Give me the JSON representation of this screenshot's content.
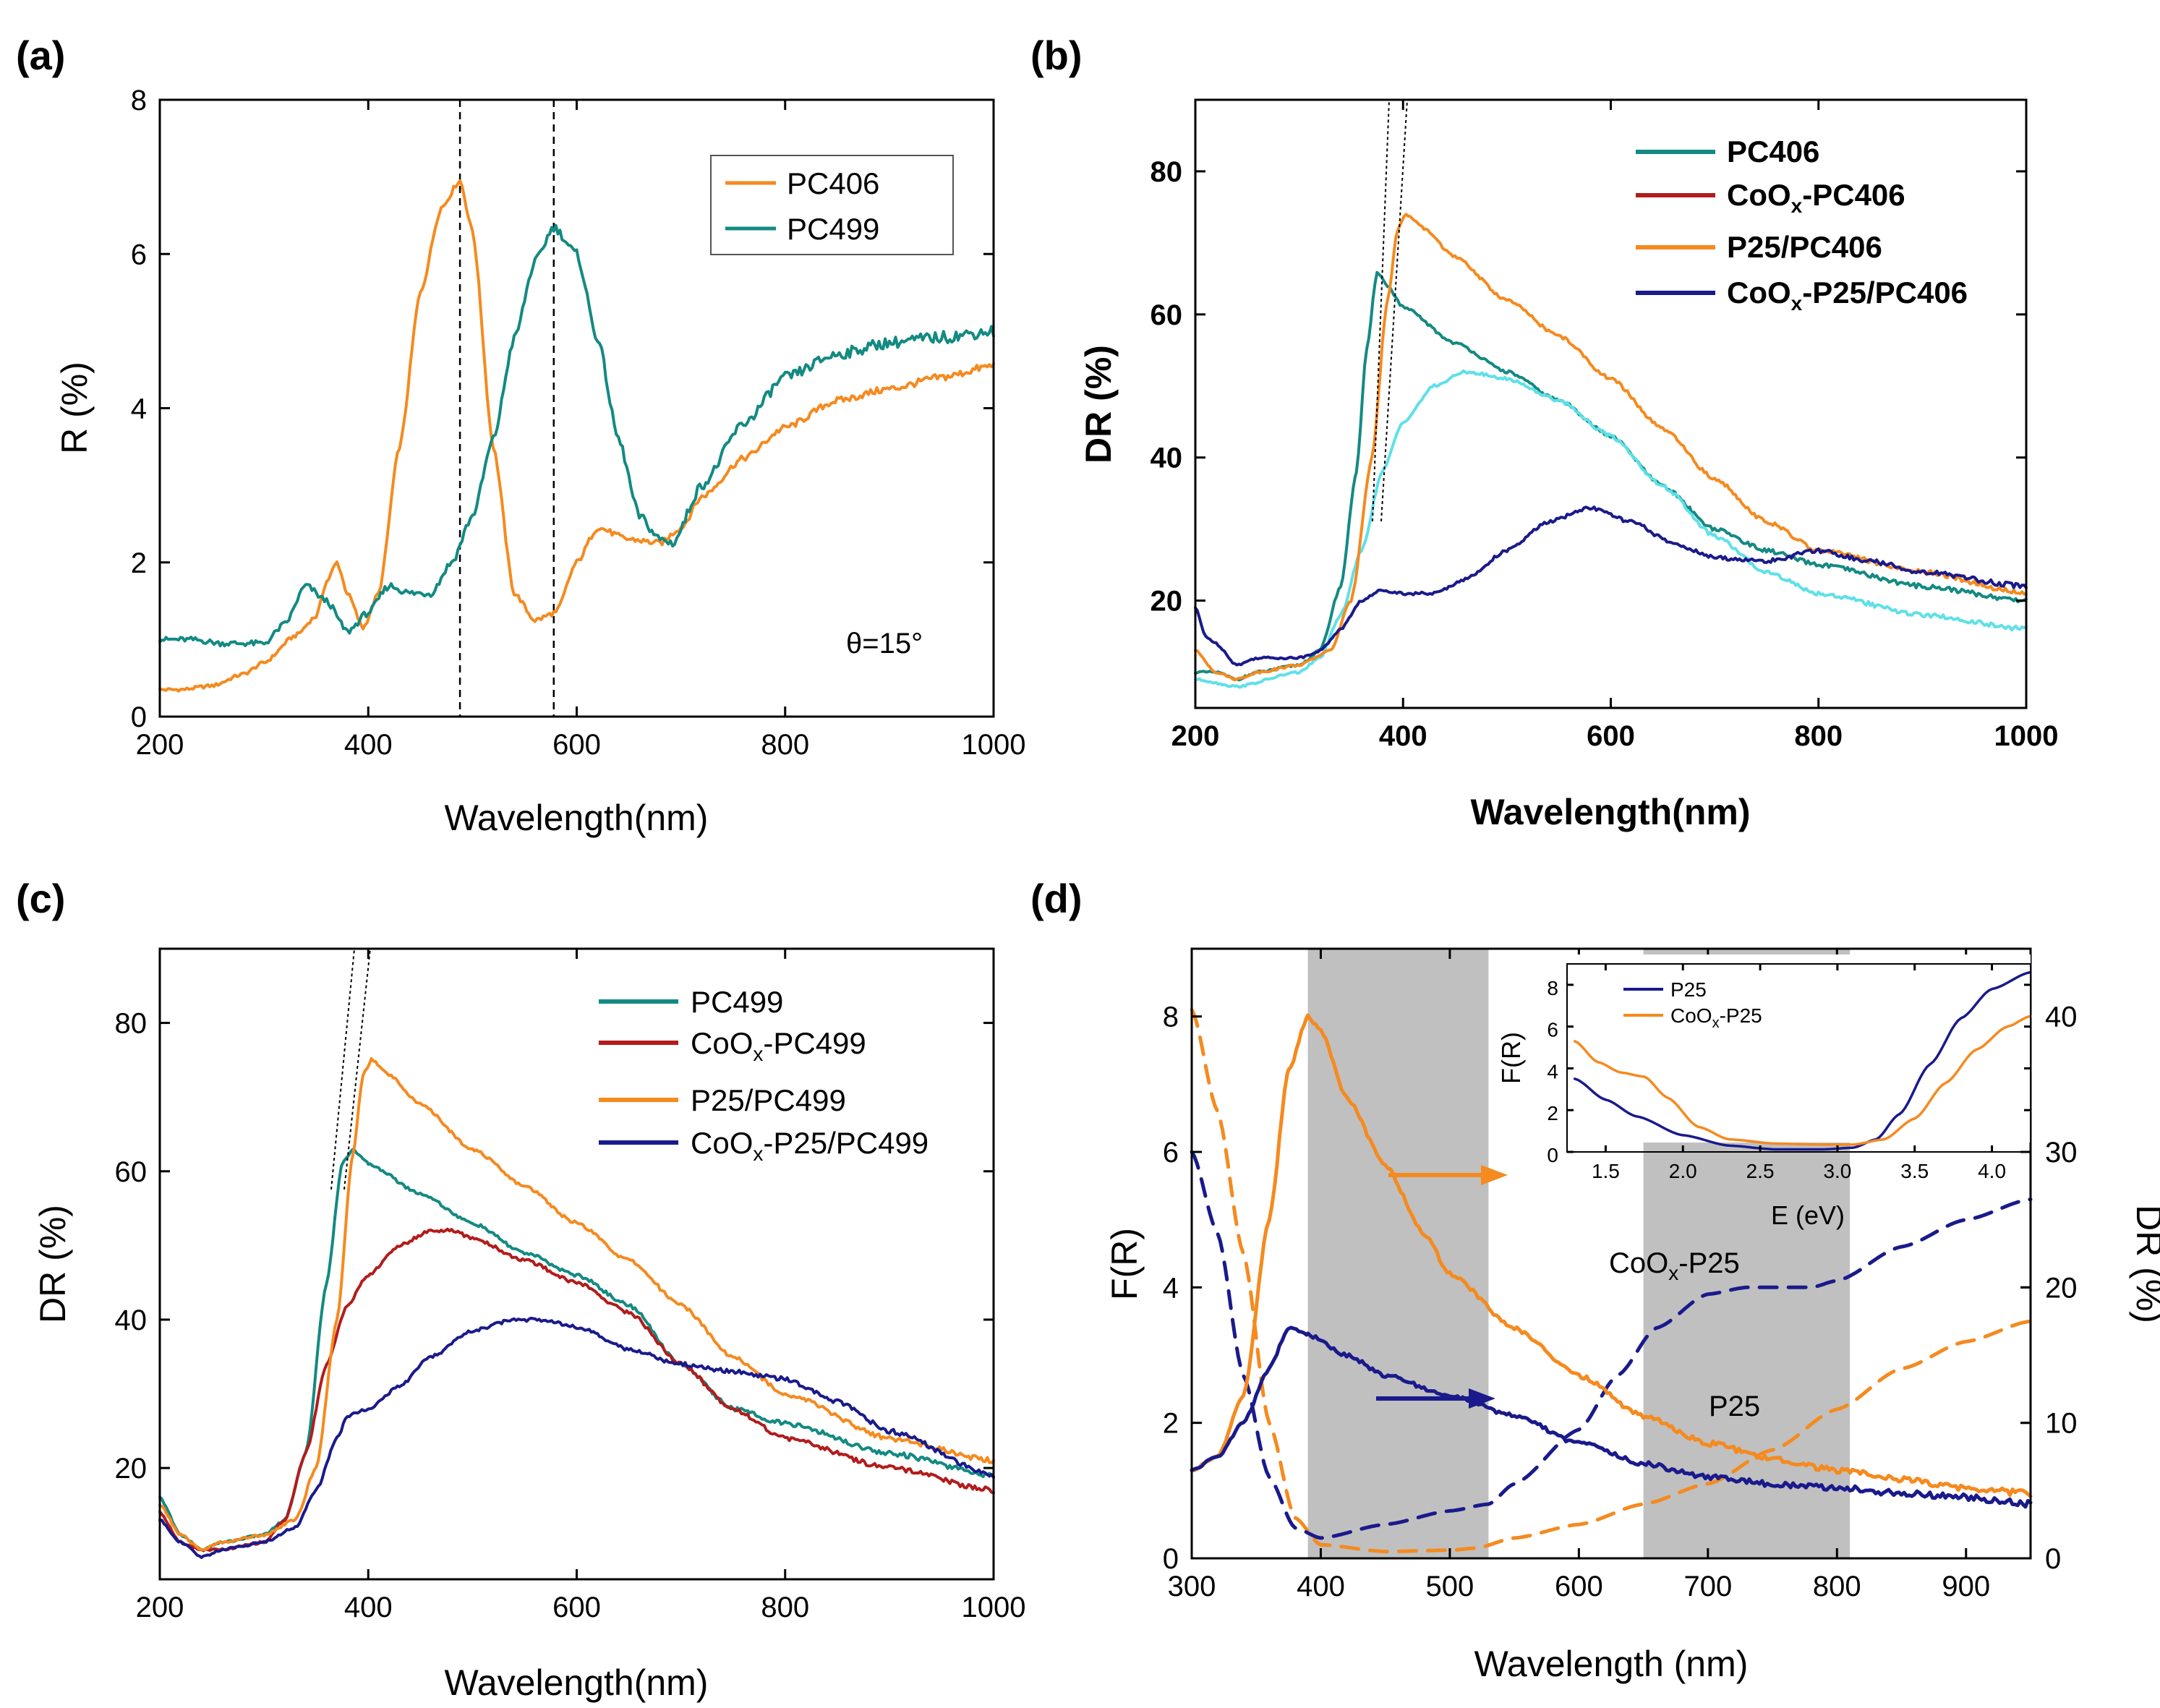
{
  "chart_data": [
    {
      "panel": "(a)",
      "type": "line",
      "xlabel": "Wavelength(nm)",
      "ylabel": "R (%)",
      "xlim": [
        200,
        1000
      ],
      "ylim": [
        0,
        8
      ],
      "xticks": [
        200,
        400,
        600,
        800,
        1000
      ],
      "yticks": [
        0,
        2,
        4,
        6,
        8
      ],
      "annotation": "θ=15°",
      "legend_position": "top-right",
      "vlines": [
        488,
        578
      ],
      "series": [
        {
          "name": "PC406",
          "color": "#f58a1f",
          "x": [
            200,
            220,
            250,
            280,
            300,
            330,
            350,
            360,
            370,
            380,
            395,
            410,
            430,
            450,
            470,
            488,
            500,
            520,
            540,
            560,
            580,
            600,
            620,
            650,
            680,
            700,
            720,
            760,
            800,
            850,
            900,
            950,
            1000
          ],
          "y": [
            0.35,
            0.35,
            0.4,
            0.55,
            0.7,
            1.05,
            1.3,
            1.75,
            2.0,
            1.6,
            1.15,
            1.6,
            3.5,
            5.5,
            6.6,
            6.95,
            6.3,
            3.5,
            1.6,
            1.25,
            1.35,
            2.0,
            2.45,
            2.3,
            2.25,
            2.45,
            2.85,
            3.35,
            3.75,
            4.1,
            4.25,
            4.4,
            4.55
          ]
        },
        {
          "name": "PC499",
          "color": "#138a82",
          "x": [
            200,
            230,
            260,
            300,
            320,
            340,
            360,
            380,
            400,
            420,
            440,
            460,
            480,
            500,
            520,
            540,
            560,
            578,
            600,
            620,
            640,
            660,
            680,
            692,
            720,
            760,
            800,
            850,
            900,
            950,
            1000
          ],
          "y": [
            1.0,
            1.0,
            0.95,
            0.95,
            1.2,
            1.7,
            1.5,
            1.1,
            1.35,
            1.7,
            1.6,
            1.6,
            2.0,
            2.6,
            3.6,
            4.9,
            5.9,
            6.35,
            6.0,
            4.9,
            3.6,
            2.6,
            2.3,
            2.25,
            3.0,
            3.8,
            4.4,
            4.7,
            4.85,
            4.92,
            5.0
          ]
        }
      ]
    },
    {
      "panel": "(b)",
      "type": "line",
      "xlabel": "Wavelength(nm)",
      "ylabel": "DR (%)",
      "xlim": [
        200,
        1000
      ],
      "ylim": [
        5,
        90
      ],
      "xticks": [
        200,
        400,
        600,
        800,
        1000
      ],
      "yticks": [
        20,
        40,
        60,
        80
      ],
      "legend_position": "top-right",
      "series": [
        {
          "name": "PC406",
          "color": "#138a82",
          "x": [
            200,
            220,
            240,
            260,
            300,
            320,
            340,
            355,
            365,
            375,
            385,
            400,
            450,
            500,
            550,
            600,
            650,
            700,
            750,
            800,
            900,
            1000
          ],
          "y": [
            10,
            10,
            9,
            10,
            11,
            13,
            22,
            38,
            55,
            66,
            64,
            61,
            56,
            52,
            48,
            43,
            36,
            30,
            27,
            25,
            22,
            20
          ]
        },
        {
          "name": "CoOx-PC406",
          "label_main": "CoO",
          "label_sub": "x",
          "label_rest": "-PC406",
          "color": "#b21c1c",
          "x": [
            200,
            240,
            300,
            320,
            340,
            360,
            380,
            400,
            430,
            460,
            500,
            550,
            600,
            650,
            700,
            750,
            800,
            900,
            1000
          ],
          "y": [
            9,
            8,
            10,
            12,
            18,
            27,
            38,
            45,
            50,
            52,
            51,
            48,
            43,
            36,
            29,
            24,
            21,
            18,
            16
          ]
        },
        {
          "name": "P25/PC406",
          "color": "#f58a1f",
          "x": [
            200,
            220,
            240,
            260,
            300,
            330,
            350,
            370,
            385,
            395,
            403,
            420,
            450,
            500,
            550,
            600,
            650,
            700,
            750,
            800,
            900,
            1000
          ],
          "y": [
            13,
            10,
            9,
            10,
            11,
            13,
            20,
            40,
            62,
            72,
            74,
            72,
            68,
            62,
            57,
            51,
            44,
            37,
            31,
            27,
            24,
            21
          ]
        },
        {
          "name": "CoOx-P25/PC406",
          "label_main": "CoO",
          "label_sub": "x",
          "label_rest": "-P25/PC406",
          "color": "#1a1a8c",
          "x": [
            200,
            210,
            220,
            240,
            260,
            300,
            320,
            340,
            360,
            380,
            400,
            430,
            460,
            500,
            540,
            580,
            620,
            660,
            700,
            750,
            800,
            850,
            900,
            1000
          ],
          "y": [
            19,
            15,
            14,
            11,
            12,
            12,
            13,
            16,
            20,
            21.5,
            21,
            21,
            23,
            27,
            31,
            33,
            31,
            28,
            26,
            25.5,
            27,
            25.5,
            24,
            22
          ]
        }
      ]
    },
    {
      "panel": "(c)",
      "type": "line",
      "xlabel": "Wavelength(nm)",
      "ylabel": "DR (%)",
      "xlim": [
        200,
        1000
      ],
      "ylim": [
        5,
        90
      ],
      "xticks": [
        200,
        400,
        600,
        800,
        1000
      ],
      "yticks": [
        20,
        40,
        60,
        80
      ],
      "legend_position": "top-right",
      "series": [
        {
          "name": "PC499",
          "color": "#138a82",
          "x": [
            200,
            220,
            240,
            260,
            300,
            320,
            340,
            360,
            375,
            385,
            400,
            450,
            500,
            550,
            600,
            650,
            700,
            750,
            800,
            900,
            1000
          ],
          "y": [
            16,
            11,
            9,
            10,
            11,
            13,
            22,
            45,
            61,
            63,
            61,
            57,
            53,
            49,
            46,
            42,
            34,
            28,
            26,
            22,
            19
          ]
        },
        {
          "name": "CoOx-PC499",
          "label_main": "CoO",
          "label_sub": "x",
          "label_rest": "-PC499",
          "color": "#b21c1c",
          "x": [
            200,
            220,
            240,
            260,
            300,
            320,
            340,
            360,
            380,
            400,
            430,
            460,
            480,
            500,
            550,
            600,
            650,
            700,
            750,
            800,
            900,
            1000
          ],
          "y": [
            14,
            10,
            9,
            9,
            10,
            13,
            22,
            34,
            42,
            46,
            50,
            52,
            52,
            51,
            48,
            45,
            41,
            34,
            28,
            24,
            20,
            17
          ]
        },
        {
          "name": "P25/PC499",
          "color": "#f58a1f",
          "x": [
            200,
            220,
            240,
            260,
            300,
            330,
            350,
            370,
            385,
            395,
            403,
            420,
            450,
            500,
            550,
            600,
            650,
            700,
            750,
            800,
            900,
            1000
          ],
          "y": [
            15,
            11,
            9,
            10,
            11,
            13,
            20,
            40,
            62,
            73,
            75,
            73,
            69,
            63,
            58,
            53,
            48,
            42,
            35,
            30,
            24,
            21
          ]
        },
        {
          "name": "CoOx-P25/PC499",
          "label_main": "CoO",
          "label_sub": "x",
          "label_rest": "-P25/PC499",
          "color": "#1a1a8c",
          "x": [
            200,
            220,
            240,
            260,
            300,
            330,
            350,
            370,
            380,
            400,
            430,
            460,
            500,
            540,
            570,
            600,
            650,
            700,
            750,
            800,
            850,
            900,
            1000
          ],
          "y": [
            13,
            10,
            8,
            9,
            10,
            12,
            17,
            24,
            27,
            28,
            31,
            35,
            38.5,
            40,
            40,
            39,
            36,
            34,
            33,
            32,
            29,
            25,
            19
          ]
        }
      ]
    },
    {
      "panel": "(d)",
      "type": "line",
      "xlabel": "Wavelength (nm)",
      "ylabel": "F(R)",
      "ylabel_right": "DR (%)",
      "xlim": [
        300,
        950
      ],
      "ylim": [
        0,
        9
      ],
      "ylim_right": [
        0,
        45
      ],
      "xticks": [
        300,
        400,
        500,
        600,
        700,
        800,
        900
      ],
      "yticks": [
        0,
        2,
        4,
        6,
        8
      ],
      "yticks_right": [
        0,
        10,
        20,
        30,
        40
      ],
      "shaded_ranges": [
        [
          390,
          530
        ],
        [
          650,
          810
        ]
      ],
      "text_labels": [
        {
          "main": "CoO",
          "sub": "x",
          "rest": "-P25"
        },
        {
          "main": "P25",
          "sub": "",
          "rest": ""
        }
      ],
      "series": [
        {
          "name": "P25 F(R)",
          "axis": "left",
          "style": "dashed",
          "color": "#f58a1f",
          "x": [
            300,
            320,
            340,
            360,
            380,
            400,
            450,
            500,
            520,
            550,
            600,
            650,
            700,
            750,
            800,
            850,
            900,
            950
          ],
          "y": [
            8.1,
            6.6,
            4.5,
            2.0,
            0.6,
            0.2,
            0.1,
            0.12,
            0.15,
            0.3,
            0.5,
            0.8,
            1.1,
            1.6,
            2.2,
            2.8,
            3.2,
            3.5
          ]
        },
        {
          "name": "CoOx-P25 F(R)",
          "axis": "left",
          "style": "dashed",
          "color": "#1a1a8c",
          "x": [
            300,
            320,
            340,
            360,
            380,
            400,
            450,
            500,
            530,
            550,
            600,
            630,
            660,
            700,
            730,
            750,
            780,
            800,
            850,
            900,
            950
          ],
          "y": [
            6.0,
            4.8,
            2.7,
            1.2,
            0.45,
            0.3,
            0.5,
            0.7,
            0.8,
            1.1,
            1.9,
            2.7,
            3.4,
            3.9,
            4.0,
            4.0,
            4.0,
            4.1,
            4.6,
            5.0,
            5.3
          ]
        },
        {
          "name": "P25 DR",
          "axis": "right",
          "style": "solid",
          "color": "#f58a1f",
          "x": [
            300,
            320,
            340,
            360,
            375,
            390,
            400,
            420,
            450,
            480,
            500,
            550,
            600,
            650,
            700,
            750,
            800,
            850,
            900,
            950
          ],
          "y": [
            6.5,
            7.5,
            12,
            25,
            36,
            40,
            39,
            34,
            29,
            24,
            21,
            17,
            13.5,
            10.5,
            8.5,
            7.3,
            6.5,
            5.8,
            5.2,
            4.8
          ]
        },
        {
          "name": "CoOx-P25 DR",
          "axis": "right",
          "style": "solid",
          "color": "#1a1a8c",
          "x": [
            300,
            320,
            340,
            360,
            375,
            390,
            420,
            450,
            500,
            550,
            600,
            650,
            700,
            750,
            800,
            850,
            900,
            950
          ],
          "y": [
            6.5,
            7.5,
            10,
            14,
            17,
            16.5,
            15,
            13.5,
            12,
            10.5,
            8.5,
            7,
            6,
            5.5,
            5.2,
            4.8,
            4.5,
            4.0
          ]
        }
      ],
      "inset": {
        "type": "line",
        "xlabel": "E (eV)",
        "ylabel": "F(R)",
        "xlim": [
          1.25,
          4.25
        ],
        "ylim": [
          0,
          9
        ],
        "xticks": [
          1.5,
          2.0,
          2.5,
          3.0,
          3.5,
          4.0
        ],
        "yticks": [
          0,
          2,
          4,
          6,
          8
        ],
        "legend_position": "top-left",
        "series": [
          {
            "name": "P25",
            "color": "#1a1a8c",
            "x": [
              1.3,
              1.5,
              1.7,
              2.0,
              2.3,
              2.6,
              2.9,
              3.1,
              3.25,
              3.4,
              3.6,
              3.8,
              4.0,
              4.25
            ],
            "y": [
              3.5,
              2.5,
              1.7,
              0.8,
              0.3,
              0.12,
              0.12,
              0.2,
              0.6,
              1.8,
              4.2,
              6.4,
              7.8,
              8.6
            ]
          },
          {
            "name": "CoOx-P25",
            "label_main": "CoO",
            "label_sub": "x",
            "label_rest": "-P25",
            "color": "#f58a1f",
            "x": [
              1.3,
              1.45,
              1.6,
              1.75,
              1.9,
              2.1,
              2.3,
              2.6,
              2.9,
              3.1,
              3.3,
              3.5,
              3.7,
              3.9,
              4.1,
              4.25
            ],
            "y": [
              5.3,
              4.3,
              3.8,
              3.6,
              2.6,
              1.2,
              0.6,
              0.4,
              0.35,
              0.35,
              0.6,
              1.6,
              3.3,
              4.9,
              6.0,
              6.5
            ]
          }
        ]
      }
    }
  ]
}
